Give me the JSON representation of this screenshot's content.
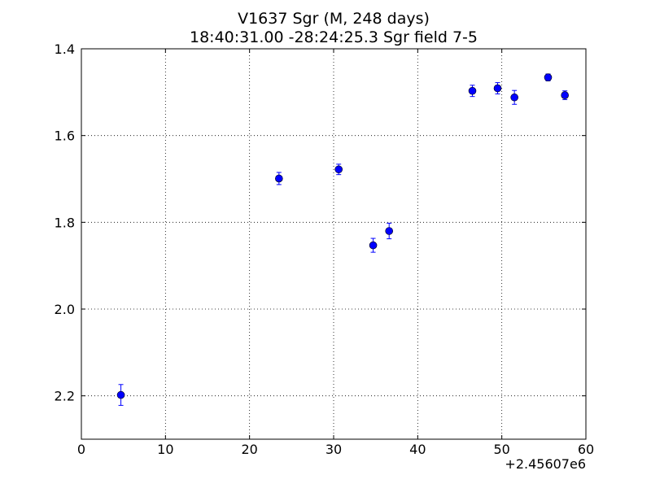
{
  "chart_data": {
    "type": "scatter",
    "title": "V1637 Sgr  (M, 248 days)",
    "subtitle": "18:40:31.00 -28:24:25.3 Sgr field 7-5",
    "xlabel": "",
    "ylabel": "",
    "x_offset_label": "+2.45607e6",
    "xlim": [
      0,
      60
    ],
    "ylim": [
      2.3,
      1.4
    ],
    "y_inverted": true,
    "x_ticks": [
      0,
      10,
      20,
      30,
      40,
      50,
      60
    ],
    "x_tick_labels": [
      "0",
      "10",
      "20",
      "30",
      "40",
      "50",
      "60"
    ],
    "y_ticks": [
      1.4,
      1.6,
      1.8,
      2.0,
      2.2
    ],
    "y_tick_labels": [
      "1.4",
      "1.6",
      "1.8",
      "2.0",
      "2.2"
    ],
    "grid": true,
    "grid_style": "dotted",
    "marker_color": "#0000ff",
    "series": [
      {
        "points": [
          {
            "x": 4.7,
            "y": 2.198,
            "err": 0.024
          },
          {
            "x": 23.5,
            "y": 1.699,
            "err": 0.014
          },
          {
            "x": 30.6,
            "y": 1.678,
            "err": 0.012
          },
          {
            "x": 34.7,
            "y": 1.853,
            "err": 0.016
          },
          {
            "x": 36.6,
            "y": 1.82,
            "err": 0.018
          },
          {
            "x": 46.5,
            "y": 1.497,
            "err": 0.013
          },
          {
            "x": 49.5,
            "y": 1.491,
            "err": 0.013
          },
          {
            "x": 51.5,
            "y": 1.512,
            "err": 0.016
          },
          {
            "x": 55.5,
            "y": 1.466,
            "err": 0.008
          },
          {
            "x": 57.5,
            "y": 1.507,
            "err": 0.01
          }
        ]
      }
    ]
  }
}
